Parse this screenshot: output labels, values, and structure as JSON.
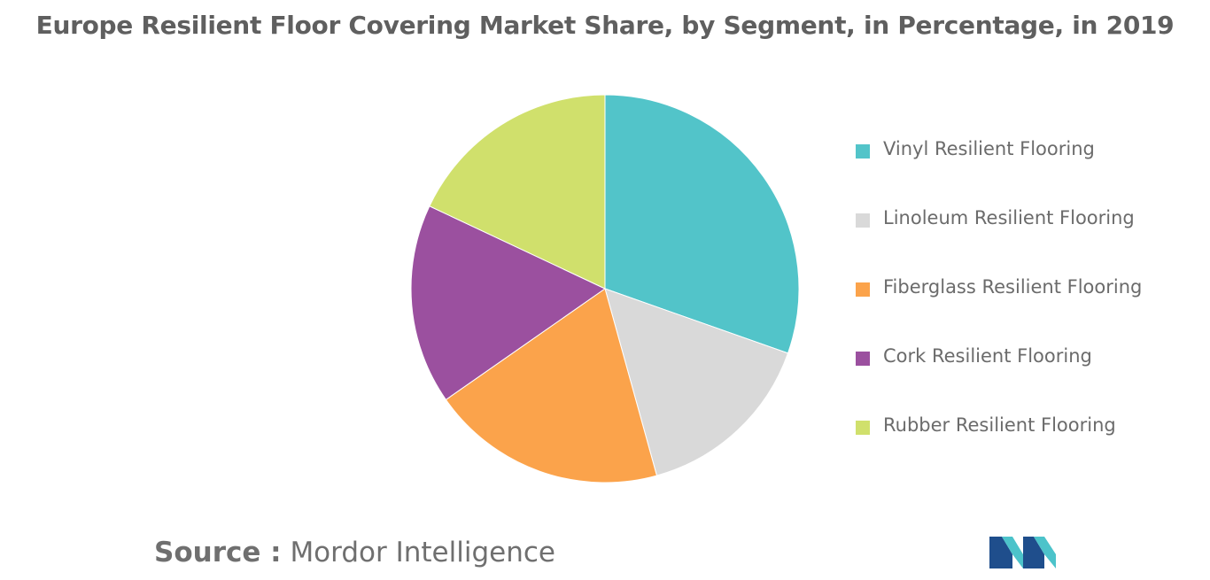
{
  "title": "Europe Resilient Floor Covering Market Share, by Segment, in Percentage, in 2019",
  "source": {
    "label": "Source :",
    "value": "Mordor Intelligence"
  },
  "colors": {
    "vinyl": "#52c4c9",
    "linoleum": "#d9d9d9",
    "fiberglass": "#fba34b",
    "cork": "#9b509f",
    "rubber": "#d0e06c",
    "title": "#5f5f5f",
    "logo_dark": "#1f4e8c",
    "logo_light": "#4cc3ca"
  },
  "chart_data": {
    "type": "pie",
    "title": "Europe Resilient Floor Covering Market Share, by Segment, in Percentage, in 2019",
    "start_angle_deg": 0,
    "direction": "clockwise",
    "legend_position": "right",
    "slices": [
      {
        "label": "Vinyl Resilient Flooring",
        "value": 30.4,
        "color": "#52c4c9"
      },
      {
        "label": "Linoleum Resilient Flooring",
        "value": 15.3,
        "color": "#d9d9d9"
      },
      {
        "label": "Fiberglass Resilient Flooring",
        "value": 19.6,
        "color": "#fba34b"
      },
      {
        "label": "Cork Resilient Flooring",
        "value": 16.7,
        "color": "#9b509f"
      },
      {
        "label": "Rubber Resilient Flooring",
        "value": 18.0,
        "color": "#d0e06c"
      }
    ]
  }
}
